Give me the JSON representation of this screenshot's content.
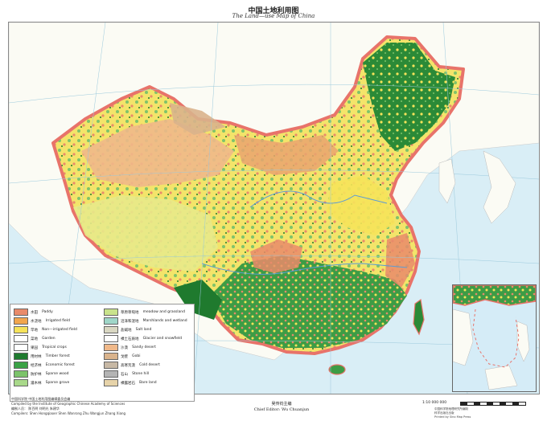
{
  "title": {
    "cn": "中国土地利用图",
    "en": "The Land—use Map of China"
  },
  "legend": {
    "left_column": [
      {
        "cn": "水田",
        "en": "Paddy",
        "color": "#e98b6a"
      },
      {
        "cn": "水浇地",
        "en": "Irrigated field",
        "color": "#f2a64d"
      },
      {
        "cn": "旱地",
        "en": "Non—irrigated field",
        "color": "#f6e35a"
      },
      {
        "cn": "菜地",
        "en": "Garden",
        "color": "#ffffff"
      },
      {
        "cn": "果园",
        "en": "Tropical crops",
        "color": "#ffffff"
      },
      {
        "cn": "用材林",
        "en": "Timber forest",
        "color": "#1f7a2e"
      },
      {
        "cn": "经济林",
        "en": "Economic forest",
        "color": "#3aa245"
      },
      {
        "cn": "防护林",
        "en": "Sparse wood",
        "color": "#7cc36a"
      },
      {
        "cn": "灌木林",
        "en": "Sparse grove",
        "color": "#a9d98a"
      }
    ],
    "right_column": [
      {
        "cn": "草原草甸地",
        "en": "meadow and grassland",
        "color": "#c9e38c"
      },
      {
        "cn": "沼泽和湿地",
        "en": "Marshlands and wetland",
        "color": "#9fd6c8"
      },
      {
        "cn": "盐碱地",
        "en": "Salt land",
        "color": "#d9d7c2"
      },
      {
        "cn": "裸土石质地",
        "en": "Glacier and snowfield",
        "color": "#ffffff"
      },
      {
        "cn": "沙漠",
        "en": "Sandy desert",
        "color": "#f0b889"
      },
      {
        "cn": "戈壁",
        "en": "Gobi",
        "color": "#d9b38c"
      },
      {
        "cn": "高寒荒漠",
        "en": "Cold desert",
        "color": "#c7b8a5"
      },
      {
        "cn": "石山",
        "en": "Stone hill",
        "color": "#b4b4b4"
      },
      {
        "cn": "裸露岩石",
        "en": "Bare land",
        "color": "#e6d3a9"
      }
    ]
  },
  "credits": {
    "line1": "中国科学院  中国土地利用图编辑委员会编",
    "line2": "Compiled by the Institute of Geographic Chinese Academy of Sciences",
    "line3": "编制人员：  陈百明    刘明光    朱建华",
    "line4": "Compilers: Shen Hongqiaoer  Shen Wanrong Zhu  Wangjun Zhang Xiang"
  },
  "editor": {
    "cn": "吴传钧主编",
    "en": "Chief Editor: Wu Chuanjun"
  },
  "scale": {
    "ratio": "1:10 000 000"
  },
  "publisher": {
    "line1": "中国科学院地理研究所编制",
    "line2": "科学出版社出版",
    "line3": "Printed by Sino Map Press"
  },
  "colors": {
    "sea": "#d9eef6",
    "border": "#e8736a",
    "paddy": "#e98b6a",
    "forest": "#1f7a2e",
    "dryland": "#f6e35a",
    "desert": "#f0b889",
    "grass": "#c9e38c"
  }
}
